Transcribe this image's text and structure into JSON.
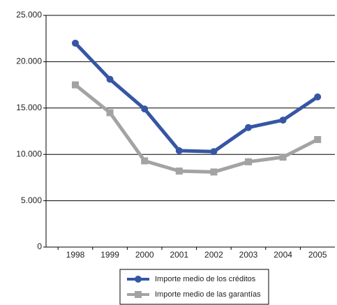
{
  "chart_data": {
    "type": "line",
    "categories": [
      "1998",
      "1999",
      "2000",
      "2001",
      "2002",
      "2003",
      "2004",
      "2005"
    ],
    "series": [
      {
        "name": "Importe medio de los créditos",
        "color": "#3656a4",
        "marker": "circle",
        "values": [
          22000,
          18100,
          14900,
          10400,
          10300,
          12900,
          13700,
          16200
        ]
      },
      {
        "name": "Importe medio de las garantías",
        "color": "#a3a3a3",
        "marker": "square",
        "values": [
          17500,
          14500,
          9300,
          8200,
          8100,
          9200,
          9700,
          11600
        ]
      }
    ],
    "ylim": [
      0,
      25000
    ],
    "yticks": [
      0,
      {
        "value": 5000,
        "label": "5.000"
      },
      {
        "value": 10000,
        "label": "10.000"
      },
      {
        "value": 15000,
        "label": "15.000"
      },
      {
        "value": 20000,
        "label": "20.000"
      },
      {
        "value": 25000,
        "label": "25.000"
      }
    ],
    "grid": true,
    "legend": "bottom"
  }
}
